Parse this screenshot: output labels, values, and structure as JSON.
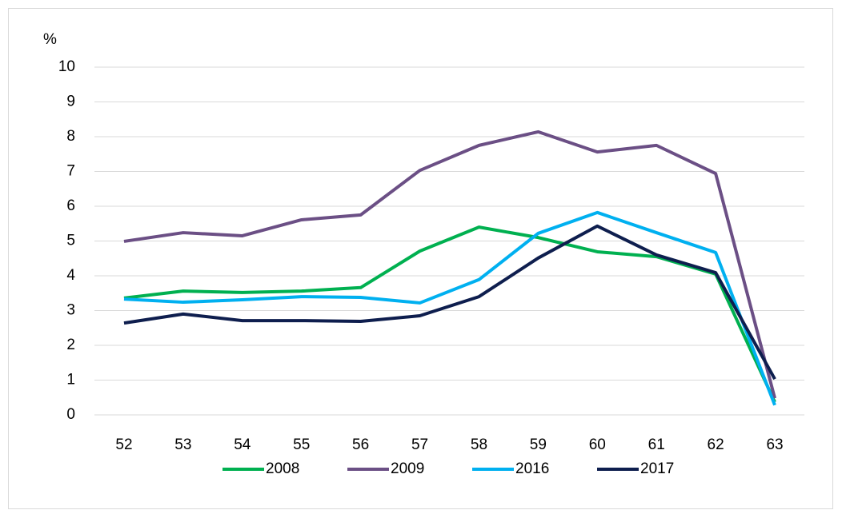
{
  "chart_data": {
    "type": "line",
    "y_label": "%",
    "categories": [
      "52",
      "53",
      "54",
      "55",
      "56",
      "57",
      "58",
      "59",
      "60",
      "61",
      "62",
      "63"
    ],
    "series": [
      {
        "name": "2008",
        "color": "#00b050",
        "values": [
          3.36,
          3.56,
          3.52,
          3.56,
          3.66,
          4.71,
          5.4,
          5.1,
          4.69,
          4.55,
          4.05,
          0.37
        ]
      },
      {
        "name": "2009",
        "color": "#6b4f85",
        "values": [
          4.99,
          5.24,
          5.15,
          5.61,
          5.75,
          7.03,
          7.75,
          8.14,
          7.56,
          7.75,
          6.94,
          0.48
        ]
      },
      {
        "name": "2016",
        "color": "#00b0f0",
        "values": [
          3.33,
          3.24,
          3.31,
          3.4,
          3.38,
          3.22,
          3.89,
          5.22,
          5.82,
          5.24,
          4.67,
          0.28
        ]
      },
      {
        "name": "2017",
        "color": "#0e1e4e",
        "values": [
          2.64,
          2.9,
          2.71,
          2.71,
          2.69,
          2.85,
          3.4,
          4.51,
          5.43,
          4.6,
          4.09,
          1.03
        ]
      }
    ],
    "ylim": [
      0,
      10
    ],
    "yticks": [
      0,
      1,
      2,
      3,
      4,
      5,
      6,
      7,
      8,
      9,
      10
    ],
    "grid": true,
    "legend": "bottom"
  }
}
